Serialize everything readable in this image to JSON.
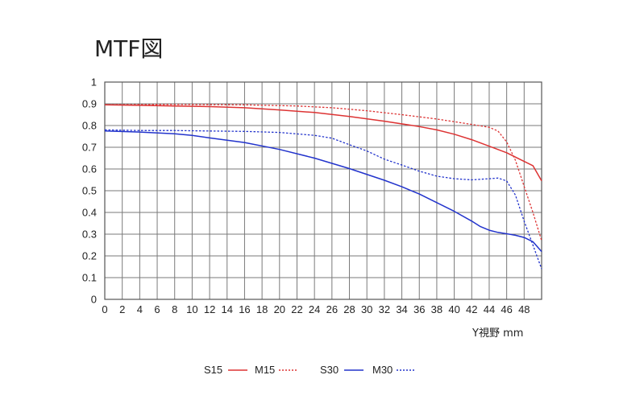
{
  "chart_data": {
    "type": "line",
    "title": "MTF図",
    "xlabel": "Y視野 mm",
    "ylabel": "",
    "xlim": [
      0,
      50
    ],
    "ylim": [
      0,
      1
    ],
    "x_ticks": [
      0,
      2,
      4,
      6,
      8,
      10,
      12,
      14,
      16,
      18,
      20,
      22,
      24,
      26,
      28,
      30,
      32,
      34,
      36,
      38,
      40,
      42,
      44,
      46,
      48
    ],
    "y_ticks": [
      "0",
      "0.1",
      "0.2",
      "0.3",
      "0.4",
      "0.5",
      "0.6",
      "0.7",
      "0.8",
      "0.9",
      "1"
    ],
    "grid": true,
    "legend_position": "bottom",
    "series": [
      {
        "name": "S15",
        "color": "#dd3333",
        "style": "solid",
        "points": [
          [
            0,
            0.895
          ],
          [
            4,
            0.893
          ],
          [
            8,
            0.89
          ],
          [
            12,
            0.887
          ],
          [
            16,
            0.882
          ],
          [
            20,
            0.872
          ],
          [
            24,
            0.86
          ],
          [
            28,
            0.842
          ],
          [
            32,
            0.82
          ],
          [
            36,
            0.795
          ],
          [
            38,
            0.78
          ],
          [
            40,
            0.76
          ],
          [
            42,
            0.735
          ],
          [
            44,
            0.705
          ],
          [
            46,
            0.675
          ],
          [
            48,
            0.635
          ],
          [
            49,
            0.615
          ],
          [
            50,
            0.545
          ]
        ]
      },
      {
        "name": "M15",
        "color": "#dd3333",
        "style": "dotted",
        "points": [
          [
            0,
            0.895
          ],
          [
            8,
            0.897
          ],
          [
            16,
            0.895
          ],
          [
            22,
            0.89
          ],
          [
            26,
            0.882
          ],
          [
            30,
            0.868
          ],
          [
            34,
            0.85
          ],
          [
            38,
            0.83
          ],
          [
            42,
            0.805
          ],
          [
            44,
            0.792
          ],
          [
            45,
            0.775
          ],
          [
            46,
            0.725
          ],
          [
            47,
            0.64
          ],
          [
            48,
            0.52
          ],
          [
            49,
            0.4
          ],
          [
            50,
            0.27
          ]
        ]
      },
      {
        "name": "S30",
        "color": "#2233cc",
        "style": "solid",
        "points": [
          [
            0,
            0.775
          ],
          [
            4,
            0.77
          ],
          [
            8,
            0.762
          ],
          [
            10,
            0.755
          ],
          [
            12,
            0.743
          ],
          [
            16,
            0.722
          ],
          [
            20,
            0.69
          ],
          [
            24,
            0.65
          ],
          [
            28,
            0.602
          ],
          [
            32,
            0.548
          ],
          [
            34,
            0.518
          ],
          [
            36,
            0.485
          ],
          [
            38,
            0.445
          ],
          [
            40,
            0.405
          ],
          [
            42,
            0.36
          ],
          [
            43,
            0.335
          ],
          [
            44,
            0.318
          ],
          [
            45,
            0.308
          ],
          [
            46,
            0.302
          ],
          [
            47,
            0.295
          ],
          [
            48,
            0.285
          ],
          [
            49,
            0.265
          ],
          [
            50,
            0.22
          ]
        ]
      },
      {
        "name": "M30",
        "color": "#2233cc",
        "style": "dotted",
        "points": [
          [
            0,
            0.78
          ],
          [
            4,
            0.777
          ],
          [
            8,
            0.777
          ],
          [
            12,
            0.775
          ],
          [
            16,
            0.773
          ],
          [
            20,
            0.768
          ],
          [
            24,
            0.755
          ],
          [
            26,
            0.742
          ],
          [
            28,
            0.712
          ],
          [
            30,
            0.683
          ],
          [
            32,
            0.645
          ],
          [
            34,
            0.618
          ],
          [
            36,
            0.59
          ],
          [
            38,
            0.567
          ],
          [
            40,
            0.555
          ],
          [
            42,
            0.55
          ],
          [
            44,
            0.555
          ],
          [
            45,
            0.558
          ],
          [
            46,
            0.545
          ],
          [
            47,
            0.48
          ],
          [
            48,
            0.36
          ],
          [
            49,
            0.25
          ],
          [
            50,
            0.14
          ]
        ]
      }
    ]
  }
}
